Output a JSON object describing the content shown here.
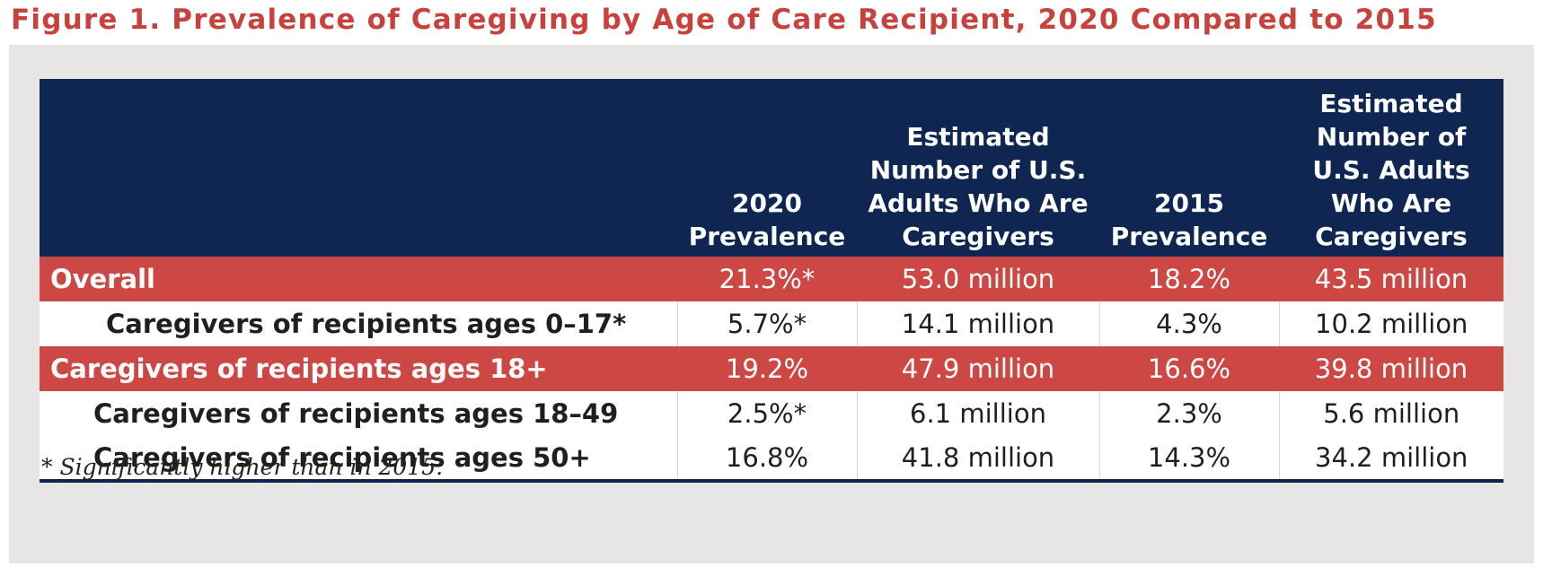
{
  "title": "Figure 1. Prevalence of Caregiving by Age of Care Recipient, 2020 Compared to 2015",
  "colors": {
    "title": "#c8423d",
    "header_bg": "#0e2651",
    "highlight_row": "#cd4844",
    "panel_bg": "#e7e6e4"
  },
  "table": {
    "headers": [
      "",
      "2020 Prevalence",
      "Estimated Number of U.S. Adults Who Are Caregivers",
      "2015 Prevalence",
      "Estimated Number of U.S. Adults Who Are Caregivers"
    ],
    "rows": [
      {
        "label": "Overall",
        "p2020": "21.3%*",
        "n2020": "53.0 million",
        "p2015": "18.2%",
        "n2015": "43.5 million"
      },
      {
        "label": "Caregivers of recipients ages 0–17*",
        "p2020": "5.7%*",
        "n2020": "14.1 million",
        "p2015": "4.3%",
        "n2015": "10.2 million"
      },
      {
        "label": "Caregivers of recipients ages 18+",
        "p2020": "19.2%",
        "n2020": "47.9 million",
        "p2015": "16.6%",
        "n2015": "39.8 million"
      },
      {
        "label": "Caregivers of recipients ages 18–49",
        "p2020": "2.5%*",
        "n2020": "6.1 million",
        "p2015": "2.3%",
        "n2015": "5.6 million"
      },
      {
        "label": "Caregivers of recipients ages 50+",
        "p2020": "16.8%",
        "n2020": "41.8 million",
        "p2015": "14.3%",
        "n2015": "34.2 million"
      }
    ]
  },
  "footnote": "* Significantly higher than in 2015."
}
